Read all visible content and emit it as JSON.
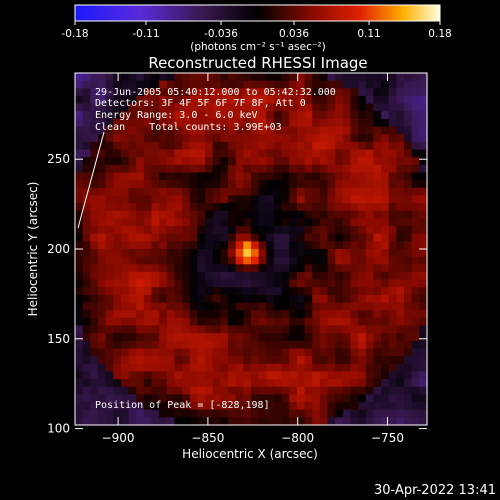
{
  "colorbar": {
    "ticks": [
      "-0.18",
      "-0.11",
      "-0.036",
      "0.036",
      "0.11",
      "0.18"
    ],
    "tick_values": [
      -0.18,
      -0.11,
      -0.036,
      0.036,
      0.11,
      0.18
    ],
    "range": [
      -0.18,
      0.18
    ],
    "units_label": "(photons cm⁻² s⁻¹ asec⁻²)"
  },
  "chart_data": {
    "type": "heatmap",
    "title": "Reconstructed RHESSI Image",
    "xlabel": "Heliocentric X (arcsec)",
    "ylabel": "Heliocentric Y (arcsec)",
    "xlim": [
      -924,
      -728
    ],
    "ylim": [
      102,
      298
    ],
    "x_ticks": [
      -900,
      -850,
      -800,
      -750
    ],
    "x_tick_labels": [
      "−900",
      "−850",
      "−800",
      "−750"
    ],
    "y_ticks": [
      100,
      150,
      200,
      250
    ],
    "y_tick_labels": [
      "100",
      "150",
      "200",
      "250"
    ],
    "colormap": "RHESSI blue-purple-black-red-yellow-white",
    "peak": {
      "x": -828,
      "y": 198,
      "value": 0.18
    },
    "annotations": [
      "29-Jun-2005 05:40:12.000 to 05:42:32.000",
      "Detectors: 3F 4F 5F 6F 7F 8F, Att 0",
      "Energy Range: 3.0 - 6.0 keV",
      "Clean    Total counts: 3.99E+03"
    ],
    "peak_label": "Position of Peak = [-828,198]"
  },
  "footer": {
    "timestamp": "30-Apr-2022 13:41"
  }
}
